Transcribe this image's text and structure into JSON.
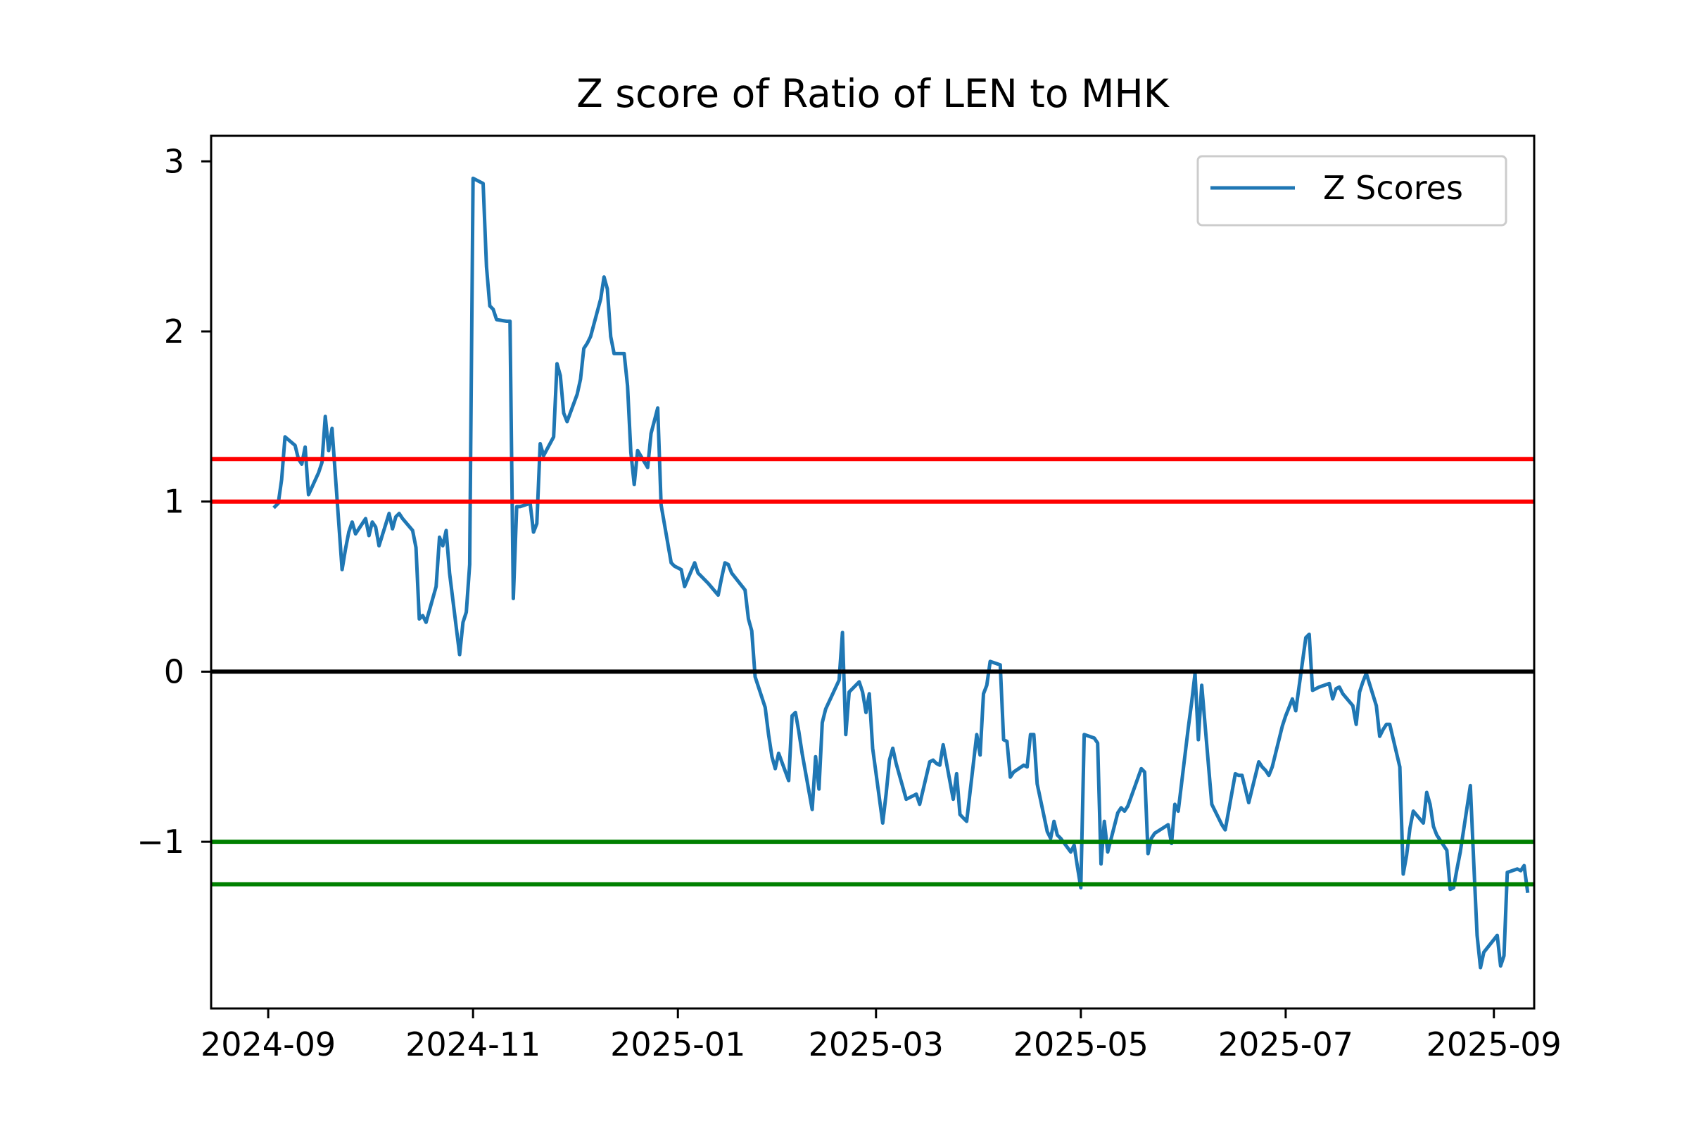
{
  "chart_data": {
    "type": "line",
    "title": "Z score of Ratio of LEN to MHK",
    "xlabel": "",
    "ylabel": "",
    "x_ticks": [
      "2024-09",
      "2024-11",
      "2025-01",
      "2025-03",
      "2025-05",
      "2025-07",
      "2025-09"
    ],
    "y_ticks": [
      3,
      2,
      1,
      0,
      -1
    ],
    "y_tick_labels": [
      "3",
      "2",
      "1",
      "0",
      "−1"
    ],
    "xlim": [
      "2024-08-15",
      "2025-09-13"
    ],
    "ylim": [
      -1.98,
      3.15
    ],
    "grid": false,
    "legend_position": "top-right",
    "series": [
      {
        "name": "Z Scores",
        "color": "#1f77b4",
        "points": [
          [
            "2024-09-03",
            0.97
          ],
          [
            "2024-09-04",
            0.99
          ],
          [
            "2024-09-05",
            1.13
          ],
          [
            "2024-09-06",
            1.38
          ],
          [
            "2024-09-09",
            1.33
          ],
          [
            "2024-09-10",
            1.25
          ],
          [
            "2024-09-11",
            1.22
          ],
          [
            "2024-09-12",
            1.32
          ],
          [
            "2024-09-13",
            1.04
          ],
          [
            "2024-09-16",
            1.17
          ],
          [
            "2024-09-17",
            1.23
          ],
          [
            "2024-09-18",
            1.5
          ],
          [
            "2024-09-19",
            1.3
          ],
          [
            "2024-09-20",
            1.43
          ],
          [
            "2024-09-23",
            0.6
          ],
          [
            "2024-09-24",
            0.72
          ],
          [
            "2024-09-25",
            0.82
          ],
          [
            "2024-09-26",
            0.88
          ],
          [
            "2024-09-27",
            0.81
          ],
          [
            "2024-09-30",
            0.9
          ],
          [
            "2024-10-01",
            0.8
          ],
          [
            "2024-10-02",
            0.88
          ],
          [
            "2024-10-03",
            0.85
          ],
          [
            "2024-10-04",
            0.74
          ],
          [
            "2024-10-07",
            0.93
          ],
          [
            "2024-10-08",
            0.84
          ],
          [
            "2024-10-09",
            0.91
          ],
          [
            "2024-10-10",
            0.93
          ],
          [
            "2024-10-11",
            0.9
          ],
          [
            "2024-10-14",
            0.83
          ],
          [
            "2024-10-15",
            0.73
          ],
          [
            "2024-10-16",
            0.31
          ],
          [
            "2024-10-17",
            0.33
          ],
          [
            "2024-10-18",
            0.29
          ],
          [
            "2024-10-21",
            0.5
          ],
          [
            "2024-10-22",
            0.79
          ],
          [
            "2024-10-23",
            0.74
          ],
          [
            "2024-10-24",
            0.83
          ],
          [
            "2024-10-25",
            0.58
          ],
          [
            "2024-10-28",
            0.1
          ],
          [
            "2024-10-29",
            0.29
          ],
          [
            "2024-10-30",
            0.35
          ],
          [
            "2024-10-31",
            0.63
          ],
          [
            "2024-11-01",
            2.9
          ],
          [
            "2024-11-04",
            2.87
          ],
          [
            "2024-11-05",
            2.38
          ],
          [
            "2024-11-06",
            2.15
          ],
          [
            "2024-11-07",
            2.13
          ],
          [
            "2024-11-08",
            2.07
          ],
          [
            "2024-11-11",
            2.06
          ],
          [
            "2024-11-12",
            2.06
          ],
          [
            "2024-11-13",
            0.43
          ],
          [
            "2024-11-14",
            0.97
          ],
          [
            "2024-11-15",
            0.97
          ],
          [
            "2024-11-18",
            0.99
          ],
          [
            "2024-11-19",
            0.82
          ],
          [
            "2024-11-20",
            0.87
          ],
          [
            "2024-11-21",
            1.34
          ],
          [
            "2024-11-22",
            1.27
          ],
          [
            "2024-11-25",
            1.38
          ],
          [
            "2024-11-26",
            1.81
          ],
          [
            "2024-11-27",
            1.74
          ],
          [
            "2024-11-28",
            1.52
          ],
          [
            "2024-11-29",
            1.47
          ],
          [
            "2024-12-02",
            1.63
          ],
          [
            "2024-12-03",
            1.72
          ],
          [
            "2024-12-04",
            1.9
          ],
          [
            "2024-12-05",
            1.93
          ],
          [
            "2024-12-06",
            1.97
          ],
          [
            "2024-12-09",
            2.19
          ],
          [
            "2024-12-10",
            2.32
          ],
          [
            "2024-12-11",
            2.25
          ],
          [
            "2024-12-12",
            1.97
          ],
          [
            "2024-12-13",
            1.87
          ],
          [
            "2024-12-16",
            1.87
          ],
          [
            "2024-12-17",
            1.68
          ],
          [
            "2024-12-18",
            1.29
          ],
          [
            "2024-12-19",
            1.1
          ],
          [
            "2024-12-20",
            1.3
          ],
          [
            "2024-12-23",
            1.2
          ],
          [
            "2024-12-24",
            1.4
          ],
          [
            "2024-12-26",
            1.55
          ],
          [
            "2024-12-27",
            0.98
          ],
          [
            "2024-12-30",
            0.64
          ],
          [
            "2024-12-31",
            0.62
          ],
          [
            "2025-01-02",
            0.6
          ],
          [
            "2025-01-03",
            0.5
          ],
          [
            "2025-01-06",
            0.64
          ],
          [
            "2025-01-07",
            0.58
          ],
          [
            "2025-01-08",
            0.56
          ],
          [
            "2025-01-10",
            0.52
          ],
          [
            "2025-01-13",
            0.45
          ],
          [
            "2025-01-14",
            0.55
          ],
          [
            "2025-01-15",
            0.64
          ],
          [
            "2025-01-16",
            0.63
          ],
          [
            "2025-01-17",
            0.58
          ],
          [
            "2025-01-21",
            0.48
          ],
          [
            "2025-01-22",
            0.31
          ],
          [
            "2025-01-23",
            0.24
          ],
          [
            "2025-01-24",
            -0.03
          ],
          [
            "2025-01-27",
            -0.21
          ],
          [
            "2025-01-28",
            -0.37
          ],
          [
            "2025-01-29",
            -0.5
          ],
          [
            "2025-01-30",
            -0.57
          ],
          [
            "2025-01-31",
            -0.48
          ],
          [
            "2025-02-03",
            -0.64
          ],
          [
            "2025-02-04",
            -0.26
          ],
          [
            "2025-02-05",
            -0.24
          ],
          [
            "2025-02-06",
            -0.35
          ],
          [
            "2025-02-07",
            -0.48
          ],
          [
            "2025-02-10",
            -0.81
          ],
          [
            "2025-02-11",
            -0.5
          ],
          [
            "2025-02-12",
            -0.69
          ],
          [
            "2025-02-13",
            -0.3
          ],
          [
            "2025-02-14",
            -0.22
          ],
          [
            "2025-02-18",
            -0.05
          ],
          [
            "2025-02-19",
            0.23
          ],
          [
            "2025-02-20",
            -0.37
          ],
          [
            "2025-02-21",
            -0.12
          ],
          [
            "2025-02-24",
            -0.06
          ],
          [
            "2025-02-25",
            -0.12
          ],
          [
            "2025-02-26",
            -0.24
          ],
          [
            "2025-02-27",
            -0.13
          ],
          [
            "2025-02-28",
            -0.45
          ],
          [
            "2025-03-03",
            -0.89
          ],
          [
            "2025-03-04",
            -0.72
          ],
          [
            "2025-03-05",
            -0.52
          ],
          [
            "2025-03-06",
            -0.45
          ],
          [
            "2025-03-07",
            -0.54
          ],
          [
            "2025-03-10",
            -0.75
          ],
          [
            "2025-03-11",
            -0.74
          ],
          [
            "2025-03-12",
            -0.73
          ],
          [
            "2025-03-13",
            -0.72
          ],
          [
            "2025-03-14",
            -0.78
          ],
          [
            "2025-03-17",
            -0.53
          ],
          [
            "2025-03-18",
            -0.52
          ],
          [
            "2025-03-19",
            -0.54
          ],
          [
            "2025-03-20",
            -0.55
          ],
          [
            "2025-03-21",
            -0.43
          ],
          [
            "2025-03-24",
            -0.75
          ],
          [
            "2025-03-25",
            -0.6
          ],
          [
            "2025-03-26",
            -0.84
          ],
          [
            "2025-03-27",
            -0.86
          ],
          [
            "2025-03-28",
            -0.88
          ],
          [
            "2025-03-31",
            -0.37
          ],
          [
            "2025-04-01",
            -0.49
          ],
          [
            "2025-04-02",
            -0.13
          ],
          [
            "2025-04-03",
            -0.08
          ],
          [
            "2025-04-04",
            0.06
          ],
          [
            "2025-04-07",
            0.04
          ],
          [
            "2025-04-08",
            -0.4
          ],
          [
            "2025-04-09",
            -0.41
          ],
          [
            "2025-04-10",
            -0.62
          ],
          [
            "2025-04-11",
            -0.59
          ],
          [
            "2025-04-14",
            -0.55
          ],
          [
            "2025-04-15",
            -0.56
          ],
          [
            "2025-04-16",
            -0.37
          ],
          [
            "2025-04-17",
            -0.37
          ],
          [
            "2025-04-18",
            -0.66
          ],
          [
            "2025-04-21",
            -0.94
          ],
          [
            "2025-04-22",
            -0.98
          ],
          [
            "2025-04-23",
            -0.88
          ],
          [
            "2025-04-24",
            -0.96
          ],
          [
            "2025-04-25",
            -0.98
          ],
          [
            "2025-04-28",
            -1.06
          ],
          [
            "2025-04-29",
            -1.02
          ],
          [
            "2025-04-30",
            -1.15
          ],
          [
            "2025-05-01",
            -1.27
          ],
          [
            "2025-05-02",
            -0.37
          ],
          [
            "2025-05-05",
            -0.39
          ],
          [
            "2025-05-06",
            -0.42
          ],
          [
            "2025-05-07",
            -1.13
          ],
          [
            "2025-05-08",
            -0.88
          ],
          [
            "2025-05-09",
            -1.06
          ],
          [
            "2025-05-12",
            -0.83
          ],
          [
            "2025-05-13",
            -0.8
          ],
          [
            "2025-05-14",
            -0.82
          ],
          [
            "2025-05-15",
            -0.79
          ],
          [
            "2025-05-19",
            -0.57
          ],
          [
            "2025-05-20",
            -0.59
          ],
          [
            "2025-05-21",
            -1.07
          ],
          [
            "2025-05-22",
            -0.98
          ],
          [
            "2025-05-23",
            -0.95
          ],
          [
            "2025-05-27",
            -0.9
          ],
          [
            "2025-05-28",
            -1.01
          ],
          [
            "2025-05-29",
            -0.78
          ],
          [
            "2025-05-30",
            -0.82
          ],
          [
            "2025-06-02",
            -0.33
          ],
          [
            "2025-06-03",
            -0.18
          ],
          [
            "2025-06-04",
            -0.01
          ],
          [
            "2025-06-05",
            -0.4
          ],
          [
            "2025-06-06",
            -0.08
          ],
          [
            "2025-06-09",
            -0.78
          ],
          [
            "2025-06-10",
            -0.82
          ],
          [
            "2025-06-11",
            -0.86
          ],
          [
            "2025-06-12",
            -0.9
          ],
          [
            "2025-06-13",
            -0.93
          ],
          [
            "2025-06-16",
            -0.6
          ],
          [
            "2025-06-17",
            -0.61
          ],
          [
            "2025-06-18",
            -0.61
          ],
          [
            "2025-06-20",
            -0.77
          ],
          [
            "2025-06-23",
            -0.53
          ],
          [
            "2025-06-24",
            -0.56
          ],
          [
            "2025-06-25",
            -0.58
          ],
          [
            "2025-06-26",
            -0.61
          ],
          [
            "2025-06-27",
            -0.56
          ],
          [
            "2025-06-30",
            -0.32
          ],
          [
            "2025-07-01",
            -0.26
          ],
          [
            "2025-07-02",
            -0.21
          ],
          [
            "2025-07-03",
            -0.16
          ],
          [
            "2025-07-04",
            -0.23
          ],
          [
            "2025-07-07",
            0.2
          ],
          [
            "2025-07-08",
            0.22
          ],
          [
            "2025-07-09",
            -0.11
          ],
          [
            "2025-07-10",
            -0.1
          ],
          [
            "2025-07-11",
            -0.09
          ],
          [
            "2025-07-14",
            -0.07
          ],
          [
            "2025-07-15",
            -0.16
          ],
          [
            "2025-07-16",
            -0.1
          ],
          [
            "2025-07-17",
            -0.09
          ],
          [
            "2025-07-18",
            -0.13
          ],
          [
            "2025-07-21",
            -0.2
          ],
          [
            "2025-07-22",
            -0.31
          ],
          [
            "2025-07-23",
            -0.12
          ],
          [
            "2025-07-24",
            -0.06
          ],
          [
            "2025-07-25",
            -0.01
          ],
          [
            "2025-07-28",
            -0.2
          ],
          [
            "2025-07-29",
            -0.38
          ],
          [
            "2025-07-30",
            -0.34
          ],
          [
            "2025-07-31",
            -0.31
          ],
          [
            "2025-08-01",
            -0.31
          ],
          [
            "2025-08-04",
            -0.56
          ],
          [
            "2025-08-05",
            -1.19
          ],
          [
            "2025-08-06",
            -1.08
          ],
          [
            "2025-08-07",
            -0.92
          ],
          [
            "2025-08-08",
            -0.82
          ],
          [
            "2025-08-11",
            -0.89
          ],
          [
            "2025-08-12",
            -0.71
          ],
          [
            "2025-08-13",
            -0.78
          ],
          [
            "2025-08-14",
            -0.91
          ],
          [
            "2025-08-15",
            -0.96
          ],
          [
            "2025-08-18",
            -1.05
          ],
          [
            "2025-08-19",
            -1.28
          ],
          [
            "2025-08-20",
            -1.27
          ],
          [
            "2025-08-21",
            -1.16
          ],
          [
            "2025-08-22",
            -1.06
          ],
          [
            "2025-08-25",
            -0.67
          ],
          [
            "2025-08-26",
            -1.12
          ],
          [
            "2025-08-27",
            -1.55
          ],
          [
            "2025-08-28",
            -1.74
          ],
          [
            "2025-08-29",
            -1.65
          ],
          [
            "2025-09-02",
            -1.55
          ],
          [
            "2025-09-03",
            -1.73
          ],
          [
            "2025-09-04",
            -1.67
          ],
          [
            "2025-09-05",
            -1.18
          ],
          [
            "2025-09-08",
            -1.16
          ],
          [
            "2025-09-09",
            -1.17
          ],
          [
            "2025-09-10",
            -1.14
          ],
          [
            "2025-09-11",
            -1.29
          ]
        ]
      }
    ],
    "hlines": [
      {
        "y": 1.25,
        "color": "#ff0000"
      },
      {
        "y": 1.0,
        "color": "#ff0000"
      },
      {
        "y": 0.0,
        "color": "#000000"
      },
      {
        "y": -1.0,
        "color": "#008000"
      },
      {
        "y": -1.25,
        "color": "#008000"
      }
    ]
  }
}
